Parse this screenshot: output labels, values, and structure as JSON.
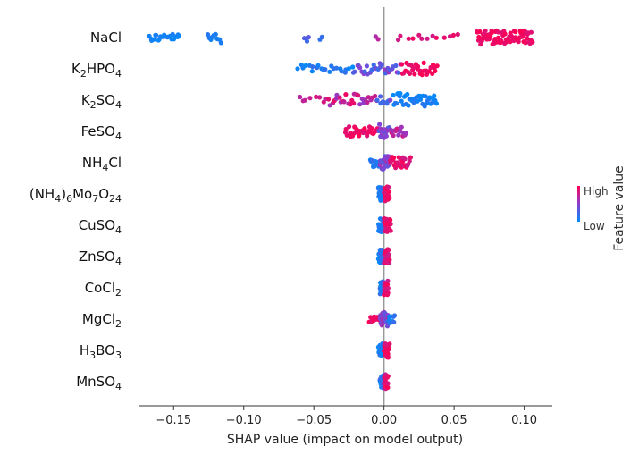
{
  "chart_data": {
    "type": "scatter",
    "subtype": "shap-beeswarm",
    "xlabel": "SHAP value (impact on model output)",
    "xlim": [
      -0.175,
      0.12
    ],
    "xticks": [
      -0.15,
      -0.1,
      -0.05,
      0.0,
      0.05,
      0.1
    ],
    "xtick_labels": [
      "−0.15",
      "−0.10",
      "−0.05",
      "0.00",
      "0.05",
      "0.10"
    ],
    "zero_line": true,
    "grid": false,
    "colorbar": {
      "title": "Feature value",
      "high_label": "High",
      "low_label": "Low",
      "high_color": "#ff0052",
      "low_color": "#008bfb",
      "placement": "right"
    },
    "features": [
      {
        "label": "NaCl",
        "base": "NaCl",
        "sub": [],
        "clusters": [
          {
            "x": [
              -0.168,
              -0.145
            ],
            "n": 22,
            "spread": 0.55,
            "c": [
              0.02,
              0.1
            ]
          },
          {
            "x": [
              -0.126,
              -0.116
            ],
            "n": 10,
            "spread": 0.75,
            "c": [
              0.05,
              0.15
            ]
          },
          {
            "x": [
              -0.057,
              -0.053
            ],
            "n": 4,
            "spread": 0.6,
            "c": [
              0.2,
              0.35
            ]
          },
          {
            "x": [
              -0.046,
              -0.044
            ],
            "n": 2,
            "spread": 0.4,
            "c": [
              0.15,
              0.25
            ]
          },
          {
            "x": [
              -0.006,
              -0.004
            ],
            "n": 2,
            "spread": 0.4,
            "c": [
              0.55,
              0.7
            ]
          },
          {
            "x": [
              0.008,
              0.055
            ],
            "n": 13,
            "spread": 0.45,
            "c": [
              0.7,
              0.95
            ]
          },
          {
            "x": [
              0.066,
              0.106
            ],
            "n": 75,
            "spread": 1.0,
            "c": [
              0.85,
              1.0
            ]
          }
        ]
      },
      {
        "label": "K2HPO4",
        "base": "K",
        "sub": [
          [
            "2",
            "HPO"
          ],
          [
            "4",
            ""
          ]
        ],
        "clusters": [
          {
            "x": [
              -0.062,
              -0.022
            ],
            "n": 22,
            "spread": 0.55,
            "c": [
              0.0,
              0.2
            ]
          },
          {
            "x": [
              -0.022,
              0.012
            ],
            "n": 30,
            "spread": 0.8,
            "c": [
              0.2,
              0.6
            ]
          },
          {
            "x": [
              0.012,
              0.038
            ],
            "n": 30,
            "spread": 0.85,
            "c": [
              0.85,
              1.0
            ]
          }
        ]
      },
      {
        "label": "K2SO4",
        "base": "K",
        "sub": [
          [
            "2",
            "SO"
          ],
          [
            "4",
            ""
          ]
        ],
        "clusters": [
          {
            "x": [
              -0.062,
              -0.04
            ],
            "n": 8,
            "spread": 0.5,
            "c": [
              0.6,
              0.9
            ]
          },
          {
            "x": [
              -0.04,
              -0.005
            ],
            "n": 28,
            "spread": 0.85,
            "c": [
              0.5,
              0.95
            ]
          },
          {
            "x": [
              -0.005,
              0.005
            ],
            "n": 8,
            "spread": 0.6,
            "c": [
              0.2,
              0.5
            ]
          },
          {
            "x": [
              0.006,
              0.038
            ],
            "n": 40,
            "spread": 0.95,
            "c": [
              0.0,
              0.15
            ]
          }
        ]
      },
      {
        "label": "FeSO4",
        "base": "FeSO",
        "sub": [
          [
            "4",
            ""
          ]
        ],
        "clusters": [
          {
            "x": [
              -0.028,
              -0.004
            ],
            "n": 30,
            "spread": 0.7,
            "c": [
              0.85,
              1.0
            ]
          },
          {
            "x": [
              -0.004,
              0.004
            ],
            "n": 16,
            "spread": 1.0,
            "c": [
              0.3,
              0.6
            ]
          },
          {
            "x": [
              0.004,
              0.016
            ],
            "n": 16,
            "spread": 0.7,
            "c": [
              0.55,
              0.85
            ]
          }
        ]
      },
      {
        "label": "NH4Cl",
        "base": "NH",
        "sub": [
          [
            "4",
            "Cl"
          ]
        ],
        "clusters": [
          {
            "x": [
              -0.01,
              -0.003
            ],
            "n": 12,
            "spread": 0.7,
            "c": [
              0.0,
              0.2
            ]
          },
          {
            "x": [
              -0.003,
              0.004
            ],
            "n": 28,
            "spread": 1.0,
            "c": [
              0.3,
              0.6
            ]
          },
          {
            "x": [
              0.004,
              0.019
            ],
            "n": 24,
            "spread": 0.8,
            "c": [
              0.8,
              1.0
            ]
          }
        ]
      },
      {
        "label": "(NH4)6Mo7O24",
        "base": "(NH",
        "sub": [
          [
            "4",
            ")"
          ],
          [
            "6",
            "Mo"
          ],
          [
            "7",
            "O"
          ],
          [
            "24",
            ""
          ]
        ],
        "clusters": [
          {
            "x": [
              -0.004,
              0.0
            ],
            "n": 22,
            "spread": 0.95,
            "c": [
              0.0,
              0.2
            ]
          },
          {
            "x": [
              0.0,
              0.004
            ],
            "n": 26,
            "spread": 1.0,
            "c": [
              0.8,
              1.0
            ]
          }
        ]
      },
      {
        "label": "CuSO4",
        "base": "CuSO",
        "sub": [
          [
            "4",
            ""
          ]
        ],
        "clusters": [
          {
            "x": [
              -0.004,
              0.0
            ],
            "n": 22,
            "spread": 0.95,
            "c": [
              0.0,
              0.2
            ]
          },
          {
            "x": [
              0.0,
              0.005
            ],
            "n": 26,
            "spread": 1.0,
            "c": [
              0.8,
              1.0
            ]
          }
        ]
      },
      {
        "label": "ZnSO4",
        "base": "ZnSO",
        "sub": [
          [
            "4",
            ""
          ]
        ],
        "clusters": [
          {
            "x": [
              -0.004,
              0.0
            ],
            "n": 22,
            "spread": 0.95,
            "c": [
              0.0,
              0.25
            ]
          },
          {
            "x": [
              0.0,
              0.004
            ],
            "n": 24,
            "spread": 1.0,
            "c": [
              0.75,
              1.0
            ]
          }
        ]
      },
      {
        "label": "CoCl2",
        "base": "CoCl",
        "sub": [
          [
            "2",
            ""
          ]
        ],
        "clusters": [
          {
            "x": [
              -0.003,
              0.0
            ],
            "n": 20,
            "spread": 0.9,
            "c": [
              0.0,
              0.25
            ]
          },
          {
            "x": [
              0.0,
              0.003
            ],
            "n": 22,
            "spread": 1.0,
            "c": [
              0.75,
              1.0
            ]
          }
        ]
      },
      {
        "label": "MgCl2",
        "base": "MgCl",
        "sub": [
          [
            "2",
            ""
          ]
        ],
        "clusters": [
          {
            "x": [
              -0.011,
              -0.003
            ],
            "n": 10,
            "spread": 0.45,
            "c": [
              0.8,
              1.0
            ]
          },
          {
            "x": [
              -0.003,
              0.003
            ],
            "n": 24,
            "spread": 1.0,
            "c": [
              0.3,
              0.65
            ]
          },
          {
            "x": [
              0.003,
              0.008
            ],
            "n": 10,
            "spread": 0.6,
            "c": [
              0.0,
              0.2
            ]
          }
        ]
      },
      {
        "label": "H3BO3",
        "base": "H",
        "sub": [
          [
            "3",
            "BO"
          ],
          [
            "3",
            ""
          ]
        ],
        "clusters": [
          {
            "x": [
              -0.004,
              0.0
            ],
            "n": 22,
            "spread": 0.95,
            "c": [
              0.0,
              0.2
            ]
          },
          {
            "x": [
              0.0,
              0.004
            ],
            "n": 22,
            "spread": 1.0,
            "c": [
              0.8,
              1.0
            ]
          }
        ]
      },
      {
        "label": "MnSO4",
        "base": "MnSO",
        "sub": [
          [
            "4",
            ""
          ]
        ],
        "clusters": [
          {
            "x": [
              -0.003,
              0.0
            ],
            "n": 18,
            "spread": 0.9,
            "c": [
              0.0,
              0.25
            ]
          },
          {
            "x": [
              0.0,
              0.003
            ],
            "n": 20,
            "spread": 1.0,
            "c": [
              0.75,
              1.0
            ]
          }
        ]
      }
    ]
  }
}
